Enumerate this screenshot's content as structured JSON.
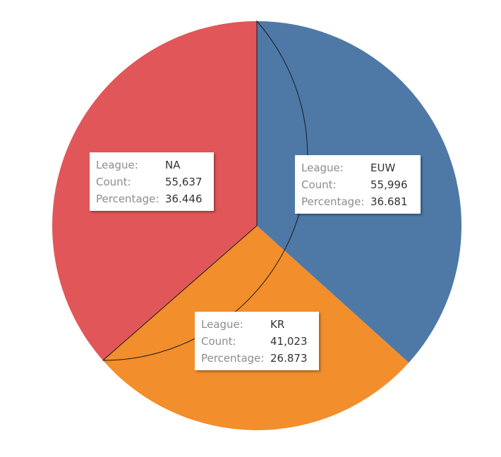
{
  "chart_data": {
    "type": "pie",
    "slices": [
      {
        "league": "EUW",
        "count": "55,996",
        "percentage": "36.681",
        "value": 55996,
        "color": "#4e79a7"
      },
      {
        "league": "KR",
        "count": "41,023",
        "percentage": "26.873",
        "value": 41023,
        "color": "#f28e2b"
      },
      {
        "league": "NA",
        "count": "55,637",
        "percentage": "36.446",
        "value": 55637,
        "color": "#e15759"
      }
    ],
    "start_angle": "12 o'clock, clockwise",
    "field_labels": {
      "league": "League:",
      "count": "Count:",
      "percentage": "Percentage:"
    }
  }
}
